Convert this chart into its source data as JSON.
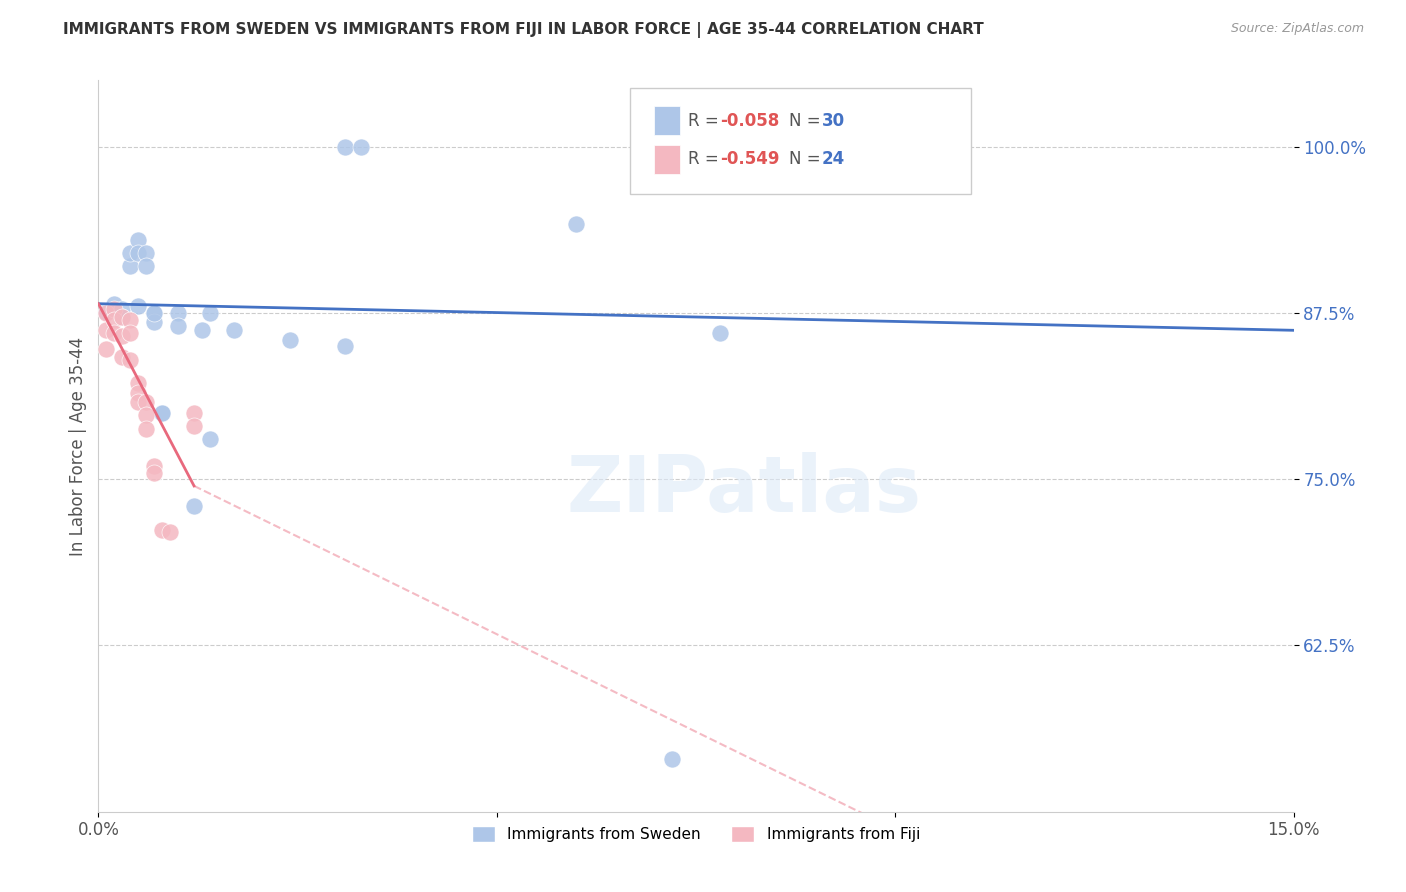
{
  "title": "IMMIGRANTS FROM SWEDEN VS IMMIGRANTS FROM FIJI IN LABOR FORCE | AGE 35-44 CORRELATION CHART",
  "source": "Source: ZipAtlas.com",
  "ylabel": "In Labor Force | Age 35-44",
  "x_min": 0.0,
  "x_max": 0.15,
  "y_min": 0.5,
  "y_max": 1.05,
  "y_ticks": [
    0.625,
    0.75,
    0.875,
    1.0
  ],
  "y_tick_labels": [
    "62.5%",
    "75.0%",
    "87.5%",
    "100.0%"
  ],
  "x_ticks": [
    0.0,
    0.05,
    0.1,
    0.15
  ],
  "x_tick_labels": [
    "0.0%",
    "",
    "",
    "15.0%"
  ],
  "sweden_color": "#aec6e8",
  "fiji_color": "#f4b8c1",
  "sweden_line_color": "#4472c4",
  "fiji_line_color": "#e8697d",
  "watermark": "ZIPatlas",
  "sweden_R": -0.058,
  "sweden_N": 30,
  "fiji_R": -0.549,
  "fiji_N": 24,
  "sweden_line": [
    [
      0.0,
      0.882
    ],
    [
      0.15,
      0.862
    ]
  ],
  "fiji_line_solid": [
    [
      0.0,
      0.882
    ],
    [
      0.012,
      0.745
    ]
  ],
  "fiji_line_dash": [
    [
      0.012,
      0.745
    ],
    [
      0.15,
      0.34
    ]
  ],
  "sweden_points": [
    [
      0.001,
      0.876
    ],
    [
      0.002,
      0.882
    ],
    [
      0.003,
      0.878
    ],
    [
      0.003,
      0.872
    ],
    [
      0.004,
      0.91
    ],
    [
      0.004,
      0.92
    ],
    [
      0.005,
      0.93
    ],
    [
      0.005,
      0.88
    ],
    [
      0.005,
      0.92
    ],
    [
      0.006,
      0.92
    ],
    [
      0.006,
      0.91
    ],
    [
      0.007,
      0.875
    ],
    [
      0.007,
      0.868
    ],
    [
      0.007,
      0.875
    ],
    [
      0.008,
      0.8
    ],
    [
      0.008,
      0.8
    ],
    [
      0.01,
      0.875
    ],
    [
      0.01,
      0.865
    ],
    [
      0.012,
      0.73
    ],
    [
      0.013,
      0.862
    ],
    [
      0.014,
      0.875
    ],
    [
      0.014,
      0.78
    ],
    [
      0.017,
      0.862
    ],
    [
      0.024,
      0.855
    ],
    [
      0.031,
      0.85
    ],
    [
      0.031,
      1.0
    ],
    [
      0.033,
      1.0
    ],
    [
      0.06,
      0.942
    ],
    [
      0.078,
      0.86
    ],
    [
      0.072,
      0.54
    ]
  ],
  "fiji_points": [
    [
      0.001,
      0.875
    ],
    [
      0.001,
      0.862
    ],
    [
      0.001,
      0.848
    ],
    [
      0.002,
      0.878
    ],
    [
      0.002,
      0.87
    ],
    [
      0.002,
      0.86
    ],
    [
      0.003,
      0.872
    ],
    [
      0.003,
      0.858
    ],
    [
      0.003,
      0.842
    ],
    [
      0.004,
      0.87
    ],
    [
      0.004,
      0.86
    ],
    [
      0.004,
      0.84
    ],
    [
      0.005,
      0.822
    ],
    [
      0.005,
      0.815
    ],
    [
      0.005,
      0.808
    ],
    [
      0.006,
      0.808
    ],
    [
      0.006,
      0.798
    ],
    [
      0.006,
      0.788
    ],
    [
      0.007,
      0.76
    ],
    [
      0.007,
      0.755
    ],
    [
      0.008,
      0.712
    ],
    [
      0.009,
      0.71
    ],
    [
      0.012,
      0.8
    ],
    [
      0.012,
      0.79
    ]
  ]
}
